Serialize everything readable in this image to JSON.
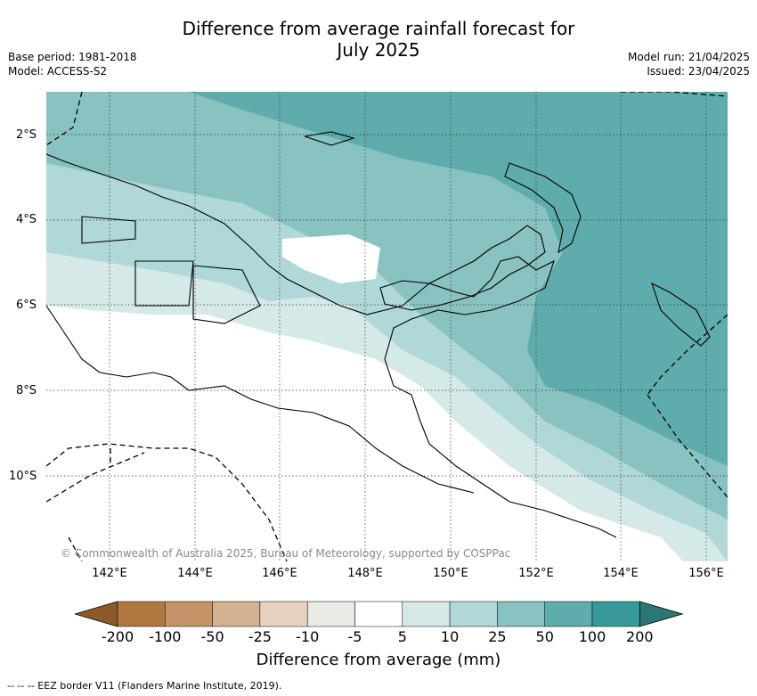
{
  "title_line1": "Difference from average rainfall forecast for",
  "title_line2": "July 2025",
  "base_period": "Base period: 1981-2018",
  "model": "Model: ACCESS-S2",
  "model_run": "Model run: 21/04/2025",
  "issued": "Issued: 23/04/2025",
  "copyright": "© Commonwealth of Australia 2025, Bureau of Meteorology, supported by COSPPac",
  "lat_labels": [
    "2°S",
    "4°S",
    "6°S",
    "8°S",
    "10°S"
  ],
  "lon_labels": [
    "142°E",
    "144°E",
    "146°E",
    "148°E",
    "150°E",
    "152°E",
    "154°E",
    "156°E"
  ],
  "colorbar": {
    "title": "Difference from average (mm)",
    "ticks": [
      "-200",
      "-100",
      "-50",
      "-25",
      "-10",
      "-5",
      "5",
      "10",
      "25",
      "50",
      "100",
      "200"
    ],
    "colors": [
      "#8c5a2a",
      "#b07840",
      "#c49368",
      "#d4b190",
      "#e6d2bd",
      "#ebeae6",
      "#ffffff",
      "#d4e9e8",
      "#b0d8d8",
      "#88c2c1",
      "#5eacab",
      "#38999a",
      "#2a7775"
    ]
  },
  "footnote": "-- -- -- EEZ border V11 (Flanders Marine Institute, 2019)."
}
